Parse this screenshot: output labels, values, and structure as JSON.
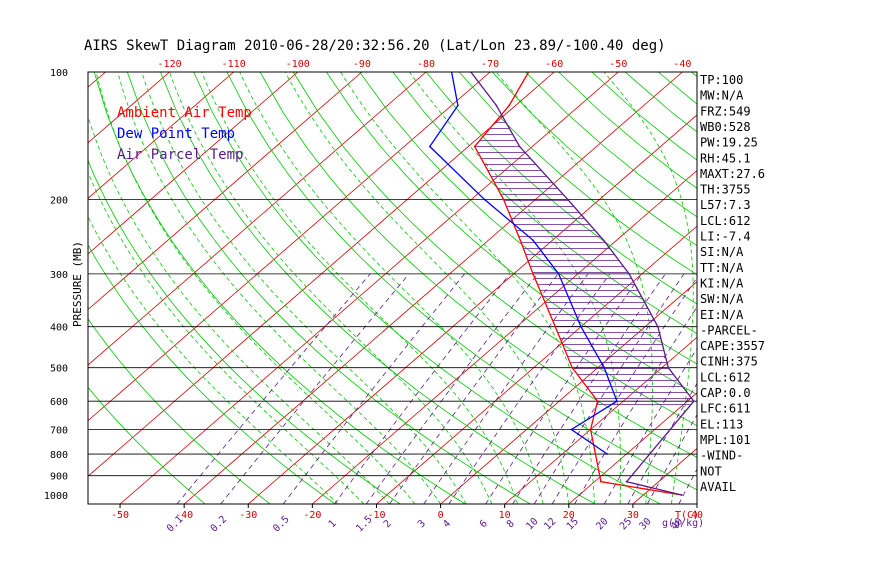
{
  "chart_data": {
    "type": "line",
    "title": "AIRS SkewT Diagram 2010-06-28/20:32:56.20 (Lat/Lon 23.89/-100.40 deg)",
    "ylabel": "PRESSURE (MB)",
    "xlabel": "T(C)",
    "mixing_ratio_unit": "g(g/kg)",
    "y_log_scale": true,
    "ylim": [
      1050,
      100
    ],
    "xlim_bottom": [
      -55,
      40
    ],
    "pressure_ticks": [
      100,
      200,
      300,
      400,
      500,
      600,
      700,
      800,
      900,
      1000
    ],
    "pressure_gridlines": [
      200,
      300,
      400,
      500,
      600,
      700,
      800,
      900
    ],
    "temp_ticks_bottom": [
      -50,
      -40,
      -30,
      -20,
      -10,
      0,
      10,
      20,
      30,
      40
    ],
    "temp_ticks_top": [
      -120,
      -110,
      -100,
      -90,
      -80,
      -70,
      -60,
      -50,
      -40
    ],
    "mixing_ratio_labels": [
      "0.1",
      "0.2",
      "0.5",
      "1",
      "1.5",
      "2",
      "3",
      "4",
      "6",
      "8",
      "10",
      "12",
      "15",
      "20",
      "25",
      "30",
      "40"
    ],
    "legend": [
      {
        "name": "Ambient Air Temp",
        "color": "#ff0000"
      },
      {
        "name": "Dew Point Temp",
        "color": "#0000ff"
      },
      {
        "name": "Air Parcel Temp",
        "color": "#5a1a8c"
      }
    ],
    "series": [
      {
        "name": "Ambient Air Temp",
        "color": "#ff0000",
        "points": [
          [
            1000,
            36
          ],
          [
            930,
            21
          ],
          [
            700,
            10
          ],
          [
            600,
            6
          ],
          [
            500,
            -4
          ],
          [
            400,
            -14
          ],
          [
            300,
            -27
          ],
          [
            250,
            -35
          ],
          [
            200,
            -45
          ],
          [
            150,
            -59
          ],
          [
            120,
            -61
          ],
          [
            100,
            -64
          ]
        ]
      },
      {
        "name": "Dew Point Temp",
        "color": "#0000ff",
        "points": [
          [
            800,
            17
          ],
          [
            700,
            7
          ],
          [
            600,
            9
          ],
          [
            500,
            1
          ],
          [
            400,
            -10
          ],
          [
            300,
            -23
          ],
          [
            250,
            -33
          ],
          [
            200,
            -48
          ],
          [
            150,
            -66
          ],
          [
            120,
            -69
          ],
          [
            100,
            -76
          ]
        ]
      },
      {
        "name": "Air Parcel Temp",
        "color": "#5a1a8c",
        "points": [
          [
            1000,
            36
          ],
          [
            930,
            25
          ],
          [
            600,
            21
          ],
          [
            500,
            11
          ],
          [
            400,
            2
          ],
          [
            300,
            -12
          ],
          [
            250,
            -22
          ],
          [
            200,
            -35
          ],
          [
            150,
            -52
          ],
          [
            120,
            -63
          ],
          [
            100,
            -73
          ]
        ]
      }
    ],
    "indices": [
      "TP:100",
      "MW:N/A",
      "FRZ:549",
      "WB0:528",
      "PW:19.25",
      "RH:45.1",
      "MAXT:27.6",
      "TH:3755",
      "L57:7.3",
      "LCL:612",
      "LI:-7.4",
      "SI:N/A",
      "TT:N/A",
      "KI:N/A",
      "SW:N/A",
      "EI:N/A",
      "-PARCEL-",
      "CAPE:3557",
      "CINH:375",
      "LCL:612",
      "CAP:0.0",
      "LFC:611",
      "EL:113",
      "MPL:101",
      "-WIND-",
      "NOT",
      "AVAIL"
    ],
    "colors": {
      "isotherm": "#d40000",
      "dry_adiabat": "#00c800",
      "moist_adiabat": "#00c800",
      "mixing_ratio": "#5a1a8c",
      "cape_hatch": "#5a1a8c",
      "axis_labels": "#d40000",
      "mixing_labels": "#5a1a8c"
    }
  }
}
